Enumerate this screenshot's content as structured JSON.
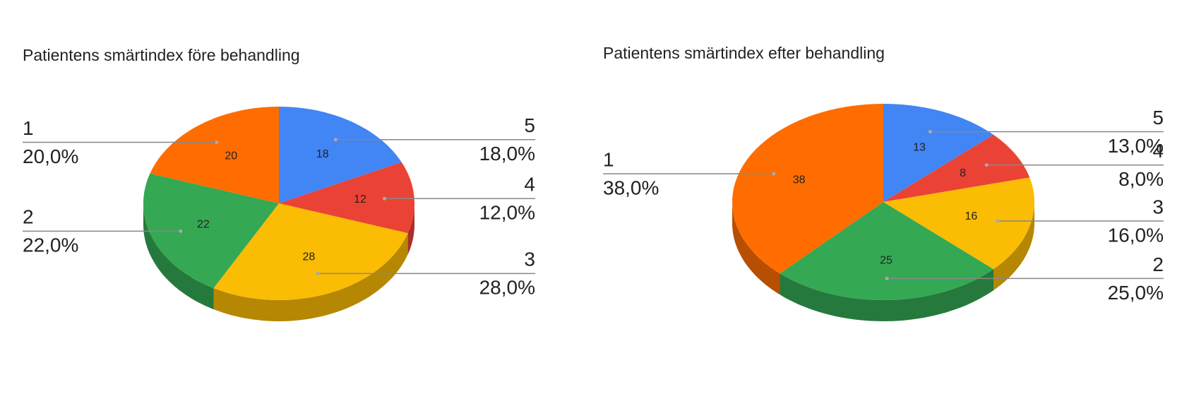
{
  "chart_data": [
    {
      "type": "pie3d",
      "title": "Patientens smärtindex före behandling",
      "categories": [
        "5",
        "4",
        "3",
        "2",
        "1"
      ],
      "values": [
        18,
        12,
        28,
        22,
        20
      ],
      "value_labels": [
        "18,0%",
        "12,0%",
        "28,0%",
        "22,0%",
        "20,0%"
      ],
      "colors": [
        "#4285f4",
        "#ea4335",
        "#fbbc04",
        "#34a853",
        "#ff6d01"
      ]
    },
    {
      "type": "pie3d",
      "title": "Patientens smärtindex efter behandling",
      "categories": [
        "5",
        "4",
        "3",
        "2",
        "1"
      ],
      "values": [
        13,
        8,
        16,
        25,
        38
      ],
      "value_labels": [
        "13,0%",
        "8,0%",
        "16,0%",
        "25,0%",
        "38,0%"
      ],
      "colors": [
        "#4285f4",
        "#ea4335",
        "#fbbc04",
        "#34a853",
        "#ff6d01"
      ]
    }
  ]
}
